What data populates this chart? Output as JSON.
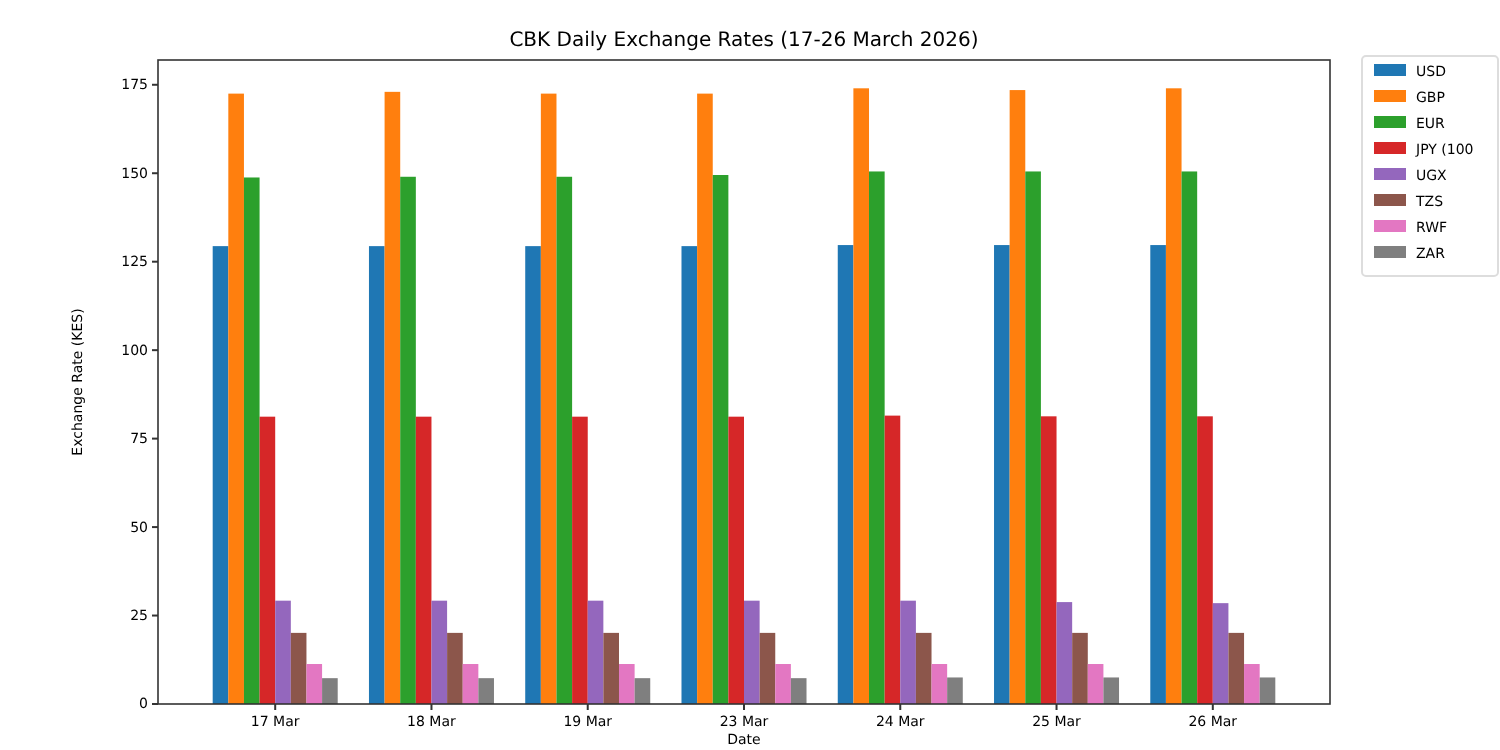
{
  "chart_data": {
    "type": "bar",
    "title": "CBK Daily Exchange Rates (17-26 March 2026)",
    "xlabel": "Date",
    "ylabel": "Exchange Rate (KES)",
    "categories": [
      "17 Mar",
      "18 Mar",
      "19 Mar",
      "23 Mar",
      "24 Mar",
      "25 Mar",
      "26 Mar"
    ],
    "series": [
      {
        "name": "USD",
        "color": "#1f77b4",
        "values": [
          129.4,
          129.4,
          129.4,
          129.4,
          129.7,
          129.7,
          129.7
        ]
      },
      {
        "name": "GBP",
        "color": "#ff7f0e",
        "values": [
          172.5,
          173,
          172.5,
          172.5,
          174,
          173.5,
          174
        ]
      },
      {
        "name": "EUR",
        "color": "#2ca02c",
        "values": [
          148.8,
          149,
          149,
          149.5,
          150.5,
          150.5,
          150.5
        ]
      },
      {
        "name": "JPY (100",
        "color": "#d62728",
        "values": [
          81.2,
          81.2,
          81.2,
          81.2,
          81.5,
          81.3,
          81.3
        ]
      },
      {
        "name": "UGX",
        "color": "#9467bd",
        "values": [
          29.2,
          29.2,
          29.2,
          29.2,
          29.2,
          28.8,
          28.5
        ]
      },
      {
        "name": "TZS",
        "color": "#8c564b",
        "values": [
          20.1,
          20.1,
          20.1,
          20.1,
          20.1,
          20.1,
          20.1
        ]
      },
      {
        "name": "RWF",
        "color": "#e377c2",
        "values": [
          11.3,
          11.3,
          11.3,
          11.3,
          11.3,
          11.3,
          11.3
        ]
      },
      {
        "name": "ZAR",
        "color": "#7f7f7f",
        "values": [
          7.3,
          7.3,
          7.3,
          7.3,
          7.5,
          7.5,
          7.5
        ]
      }
    ],
    "ylim": [
      0,
      182
    ],
    "yticks": [
      0,
      25,
      50,
      75,
      100,
      125,
      150,
      175
    ],
    "legend": "top right",
    "grid": false
  }
}
